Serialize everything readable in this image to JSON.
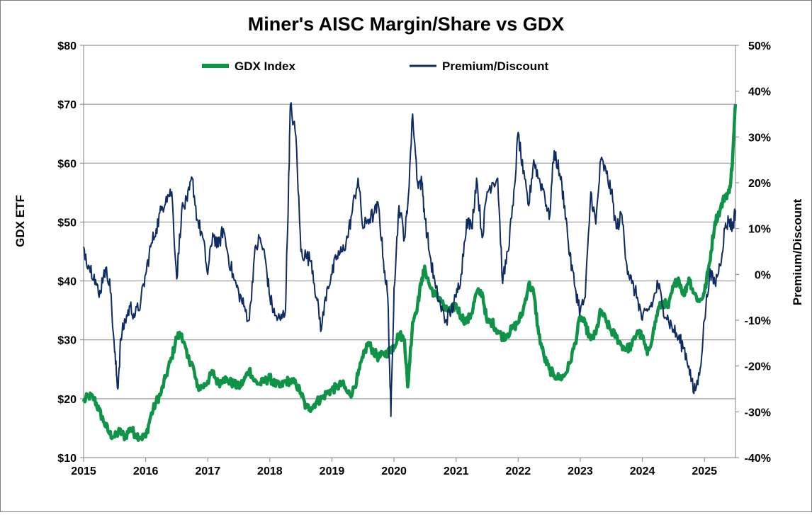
{
  "chart_data": {
    "type": "line",
    "title": "Miner's AISC Margin/Share vs GDX",
    "ylabel_left": "GDX ETF",
    "ylabel_right": "Premium/Discount",
    "ylim_left": [
      10,
      80
    ],
    "ylim_right": [
      -40,
      50
    ],
    "xlim": [
      2015,
      2025.5
    ],
    "x_ticks": [
      2015,
      2016,
      2017,
      2018,
      2019,
      2020,
      2021,
      2022,
      2023,
      2024,
      2025
    ],
    "x_tick_labels": [
      "2015",
      "2016",
      "2017",
      "2018",
      "2019",
      "2020",
      "2021",
      "2022",
      "2023",
      "2024",
      "2025"
    ],
    "y_left_ticks": [
      10,
      20,
      30,
      40,
      50,
      60,
      70,
      80
    ],
    "y_left_tick_labels": [
      "$10",
      "$20",
      "$30",
      "$40",
      "$50",
      "$60",
      "$70",
      "$80"
    ],
    "y_right_ticks": [
      -40,
      -30,
      -20,
      -10,
      0,
      10,
      20,
      30,
      40,
      50
    ],
    "y_right_tick_labels": [
      "-40%",
      "-30%",
      "-20%",
      "-10%",
      "0%",
      "10%",
      "20%",
      "30%",
      "40%",
      "50%"
    ],
    "grid": "horizontal",
    "legend_position": "top",
    "series": [
      {
        "name": "GDX Index",
        "axis": "left",
        "color": "#0e9347",
        "x": [
          2015.0,
          2015.08,
          2015.17,
          2015.25,
          2015.33,
          2015.42,
          2015.5,
          2015.58,
          2015.67,
          2015.75,
          2015.83,
          2015.92,
          2016.0,
          2016.08,
          2016.17,
          2016.25,
          2016.33,
          2016.42,
          2016.5,
          2016.58,
          2016.67,
          2016.75,
          2016.83,
          2016.92,
          2017.0,
          2017.08,
          2017.17,
          2017.25,
          2017.33,
          2017.42,
          2017.5,
          2017.58,
          2017.67,
          2017.75,
          2017.83,
          2017.92,
          2018.0,
          2018.08,
          2018.17,
          2018.25,
          2018.33,
          2018.42,
          2018.5,
          2018.58,
          2018.67,
          2018.75,
          2018.83,
          2018.92,
          2019.0,
          2019.08,
          2019.17,
          2019.25,
          2019.33,
          2019.42,
          2019.5,
          2019.58,
          2019.67,
          2019.75,
          2019.83,
          2019.92,
          2019.96,
          2020.0,
          2020.08,
          2020.17,
          2020.22,
          2020.3,
          2020.38,
          2020.45,
          2020.5,
          2020.58,
          2020.67,
          2020.75,
          2020.83,
          2020.92,
          2021.0,
          2021.08,
          2021.17,
          2021.25,
          2021.33,
          2021.42,
          2021.5,
          2021.58,
          2021.67,
          2021.75,
          2021.83,
          2021.92,
          2022.0,
          2022.08,
          2022.17,
          2022.25,
          2022.33,
          2022.42,
          2022.5,
          2022.58,
          2022.67,
          2022.75,
          2022.83,
          2022.92,
          2023.0,
          2023.08,
          2023.17,
          2023.25,
          2023.33,
          2023.42,
          2023.5,
          2023.58,
          2023.67,
          2023.75,
          2023.83,
          2023.92,
          2024.0,
          2024.08,
          2024.17,
          2024.25,
          2024.33,
          2024.42,
          2024.5,
          2024.58,
          2024.67,
          2024.75,
          2024.83,
          2024.92,
          2025.0,
          2025.08,
          2025.17,
          2025.25,
          2025.33,
          2025.4,
          2025.45,
          2025.5
        ],
        "values": [
          19.5,
          20.5,
          20.0,
          18.0,
          16.0,
          14.0,
          13.5,
          14.5,
          13.5,
          15.0,
          14.0,
          13.5,
          13.5,
          17.0,
          19.5,
          21.0,
          24.0,
          27.0,
          30.5,
          31.0,
          27.0,
          26.0,
          22.0,
          22.0,
          23.0,
          24.5,
          22.5,
          23.5,
          23.0,
          22.5,
          22.0,
          23.0,
          25.0,
          23.0,
          22.5,
          23.0,
          23.5,
          22.5,
          22.0,
          23.0,
          23.0,
          22.5,
          21.0,
          18.5,
          18.5,
          19.5,
          20.0,
          21.0,
          21.5,
          22.0,
          22.5,
          21.0,
          21.0,
          24.0,
          27.0,
          29.5,
          28.0,
          27.0,
          27.5,
          28.0,
          28.5,
          29.0,
          31.0,
          30.0,
          22.0,
          33.0,
          36.0,
          40.5,
          42.0,
          39.0,
          37.5,
          37.0,
          35.0,
          35.0,
          36.0,
          34.0,
          33.0,
          34.5,
          38.0,
          38.0,
          33.0,
          33.0,
          31.5,
          30.5,
          31.0,
          32.0,
          33.0,
          35.0,
          39.5,
          38.0,
          31.0,
          27.0,
          25.0,
          24.0,
          23.5,
          24.0,
          26.0,
          29.5,
          34.0,
          32.5,
          30.0,
          31.0,
          35.0,
          33.0,
          31.5,
          30.5,
          29.0,
          28.5,
          29.0,
          31.5,
          30.5,
          27.5,
          31.0,
          35.0,
          36.5,
          35.5,
          39.0,
          40.5,
          37.5,
          40.5,
          38.0,
          36.5,
          38.0,
          43.0,
          50.0,
          52.0,
          54.5,
          55.0,
          60.0,
          70.0
        ]
      },
      {
        "name": "Premium/Discount",
        "axis": "right",
        "color": "#0e2b63",
        "x": [
          2015.0,
          2015.08,
          2015.17,
          2015.25,
          2015.33,
          2015.42,
          2015.5,
          2015.55,
          2015.6,
          2015.67,
          2015.75,
          2015.83,
          2015.92,
          2016.0,
          2016.08,
          2016.17,
          2016.25,
          2016.33,
          2016.42,
          2016.5,
          2016.58,
          2016.67,
          2016.75,
          2016.83,
          2016.92,
          2017.0,
          2017.08,
          2017.17,
          2017.25,
          2017.33,
          2017.42,
          2017.5,
          2017.58,
          2017.67,
          2017.75,
          2017.83,
          2017.92,
          2018.0,
          2018.08,
          2018.17,
          2018.25,
          2018.3,
          2018.33,
          2018.42,
          2018.5,
          2018.58,
          2018.67,
          2018.75,
          2018.83,
          2018.92,
          2019.0,
          2019.08,
          2019.17,
          2019.25,
          2019.33,
          2019.42,
          2019.5,
          2019.58,
          2019.67,
          2019.75,
          2019.83,
          2019.9,
          2019.95,
          2020.0,
          2020.08,
          2020.17,
          2020.22,
          2020.3,
          2020.38,
          2020.45,
          2020.5,
          2020.58,
          2020.67,
          2020.75,
          2020.83,
          2020.92,
          2021.0,
          2021.08,
          2021.17,
          2021.25,
          2021.33,
          2021.42,
          2021.5,
          2021.58,
          2021.67,
          2021.75,
          2021.83,
          2021.92,
          2022.0,
          2022.08,
          2022.17,
          2022.25,
          2022.33,
          2022.42,
          2022.5,
          2022.58,
          2022.67,
          2022.75,
          2022.83,
          2022.92,
          2023.0,
          2023.08,
          2023.17,
          2023.25,
          2023.33,
          2023.42,
          2023.5,
          2023.58,
          2023.67,
          2023.75,
          2023.83,
          2023.92,
          2024.0,
          2024.08,
          2024.17,
          2024.25,
          2024.33,
          2024.42,
          2024.5,
          2024.58,
          2024.67,
          2024.75,
          2024.83,
          2024.92,
          2025.0,
          2025.08,
          2025.17,
          2025.25,
          2025.33,
          2025.4,
          2025.45,
          2025.5
        ],
        "values": [
          6.0,
          2.0,
          0.0,
          -5.0,
          1.0,
          -1.0,
          -17.0,
          -25.0,
          -14.0,
          -10.0,
          -7.0,
          -9.0,
          -6.0,
          0.0,
          6.0,
          10.0,
          14.0,
          17.0,
          18.0,
          -1.0,
          14.0,
          16.0,
          21.0,
          12.0,
          8.0,
          0.0,
          9.0,
          6.0,
          10.0,
          4.0,
          -1.0,
          -4.0,
          -7.0,
          -10.0,
          4.0,
          8.0,
          4.0,
          -5.0,
          -9.0,
          -10.0,
          -8.0,
          18.0,
          37.0,
          30.0,
          5.0,
          4.0,
          3.0,
          -5.0,
          -12.0,
          -3.0,
          0.0,
          4.0,
          5.0,
          8.0,
          14.0,
          21.0,
          10.0,
          12.0,
          13.0,
          15.0,
          3.0,
          -5.0,
          -31.0,
          -3.0,
          15.0,
          8.0,
          15.0,
          35.0,
          20.0,
          20.0,
          12.0,
          4.0,
          -3.0,
          -7.0,
          -10.0,
          -8.0,
          -5.0,
          0.0,
          12.0,
          10.0,
          21.0,
          8.0,
          18.0,
          20.0,
          21.0,
          -2.0,
          5.0,
          15.0,
          31.0,
          22.0,
          15.0,
          25.0,
          21.0,
          18.0,
          12.0,
          27.0,
          22.0,
          15.0,
          4.0,
          -3.0,
          -8.0,
          -5.0,
          18.0,
          11.0,
          25.0,
          22.0,
          18.0,
          10.0,
          13.0,
          2.0,
          -2.0,
          -5.0,
          -10.0,
          -8.0,
          -6.0,
          -2.0,
          -7.0,
          -10.0,
          -12.0,
          -14.0,
          -16.0,
          -20.0,
          -26.0,
          -22.0,
          -10.0,
          0.0,
          -2.0,
          2.0,
          10.0,
          12.0,
          10.0,
          14.0
        ]
      }
    ]
  }
}
